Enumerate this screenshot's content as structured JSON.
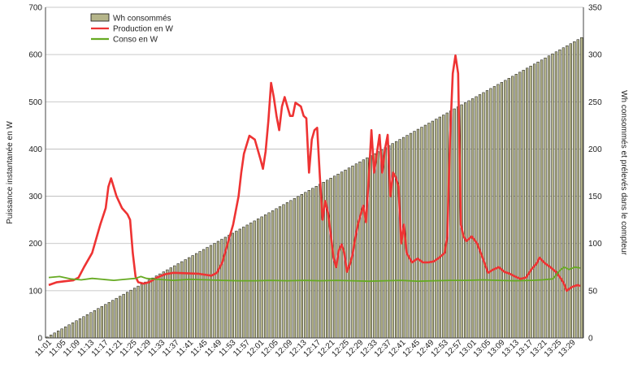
{
  "chart_data": {
    "type": "bar+line",
    "title": "",
    "left_axis": {
      "label": "Puissance instantanée en W",
      "min": 0,
      "max": 700,
      "step": 100
    },
    "right_axis": {
      "label": "Wh consommés et prélevés dans le compteur",
      "min": 0,
      "max": 350,
      "step": 50
    },
    "x_tick_labels": [
      "11:01",
      "11:05",
      "11:09",
      "11:13",
      "11:17",
      "11:21",
      "11:25",
      "11:29",
      "11:33",
      "11:37",
      "11:41",
      "11:45",
      "11:49",
      "11:53",
      "11:57",
      "12:01",
      "12:05",
      "12:09",
      "12:13",
      "12:17",
      "12:21",
      "12:25",
      "12:29",
      "12:33",
      "12:37",
      "12:41",
      "12:45",
      "12:49",
      "12:53",
      "12:57",
      "13:01",
      "13:05",
      "13:09",
      "13:13",
      "13:17",
      "13:21",
      "13:25",
      "13:29"
    ],
    "legend_position": "top-left",
    "grid": true,
    "series": [
      {
        "name": "Wh consommés",
        "kind": "bar",
        "axis": "right",
        "color": "#b5b58a",
        "edge_color": "#111111",
        "start_value": 1,
        "end_value": 318,
        "count": 148
      },
      {
        "name": "Production en W",
        "kind": "line",
        "axis": "left",
        "color": "#ee3333",
        "points": [
          [
            0,
            112
          ],
          [
            3,
            118
          ],
          [
            6,
            120
          ],
          [
            9,
            122
          ],
          [
            11,
            128
          ],
          [
            13,
            150
          ],
          [
            16,
            180
          ],
          [
            19,
            240
          ],
          [
            21,
            275
          ],
          [
            22,
            320
          ],
          [
            23,
            338
          ],
          [
            25,
            300
          ],
          [
            27,
            275
          ],
          [
            29,
            262
          ],
          [
            30,
            250
          ],
          [
            31,
            180
          ],
          [
            32,
            130
          ],
          [
            33,
            118
          ],
          [
            35,
            115
          ],
          [
            37,
            118
          ],
          [
            40,
            128
          ],
          [
            43,
            135
          ],
          [
            46,
            138
          ],
          [
            55,
            136
          ],
          [
            60,
            132
          ],
          [
            62,
            138
          ],
          [
            64,
            160
          ],
          [
            66,
            200
          ],
          [
            68,
            240
          ],
          [
            70,
            300
          ],
          [
            71,
            350
          ],
          [
            72,
            390
          ],
          [
            74,
            428
          ],
          [
            76,
            420
          ],
          [
            78,
            380
          ],
          [
            79,
            358
          ],
          [
            80,
            395
          ],
          [
            81,
            460
          ],
          [
            82,
            540
          ],
          [
            83,
            510
          ],
          [
            84,
            470
          ],
          [
            85,
            440
          ],
          [
            86,
            490
          ],
          [
            87,
            510
          ],
          [
            88,
            490
          ],
          [
            89,
            470
          ],
          [
            90,
            470
          ],
          [
            91,
            498
          ],
          [
            93,
            490
          ],
          [
            94,
            470
          ],
          [
            95,
            465
          ],
          [
            96,
            350
          ],
          [
            97,
            420
          ],
          [
            98,
            440
          ],
          [
            99,
            445
          ],
          [
            100,
            340
          ],
          [
            101,
            250
          ],
          [
            102,
            290
          ],
          [
            103,
            265
          ],
          [
            104,
            220
          ],
          [
            105,
            170
          ],
          [
            106,
            150
          ],
          [
            107,
            185
          ],
          [
            108,
            198
          ],
          [
            109,
            180
          ],
          [
            110,
            140
          ],
          [
            111,
            155
          ],
          [
            112,
            175
          ],
          [
            113,
            210
          ],
          [
            114,
            240
          ],
          [
            115,
            260
          ],
          [
            116,
            280
          ],
          [
            117,
            245
          ],
          [
            118,
            335
          ],
          [
            119,
            440
          ],
          [
            120,
            350
          ],
          [
            121,
            390
          ],
          [
            122,
            430
          ],
          [
            123,
            350
          ],
          [
            124,
            400
          ],
          [
            125,
            430
          ],
          [
            126,
            300
          ],
          [
            127,
            350
          ],
          [
            128,
            340
          ],
          [
            129,
            320
          ],
          [
            130,
            200
          ],
          [
            131,
            240
          ],
          [
            132,
            180
          ],
          [
            134,
            160
          ],
          [
            136,
            168
          ],
          [
            138,
            160
          ],
          [
            140,
            160
          ],
          [
            142,
            162
          ],
          [
            144,
            170
          ],
          [
            146,
            180
          ],
          [
            147,
            215
          ],
          [
            148,
            420
          ],
          [
            149,
            560
          ],
          [
            150,
            598
          ],
          [
            151,
            560
          ],
          [
            152,
            240
          ],
          [
            153,
            215
          ],
          [
            154,
            205
          ],
          [
            156,
            215
          ],
          [
            158,
            200
          ],
          [
            160,
            170
          ],
          [
            162,
            138
          ],
          [
            164,
            145
          ],
          [
            166,
            150
          ],
          [
            168,
            140
          ],
          [
            170,
            136
          ],
          [
            172,
            130
          ],
          [
            174,
            125
          ],
          [
            176,
            128
          ],
          [
            178,
            145
          ],
          [
            180,
            158
          ],
          [
            181,
            170
          ],
          [
            183,
            158
          ],
          [
            185,
            150
          ],
          [
            187,
            140
          ],
          [
            189,
            125
          ],
          [
            190,
            115
          ],
          [
            191,
            100
          ],
          [
            193,
            108
          ],
          [
            195,
            112
          ],
          [
            196,
            110
          ]
        ]
      },
      {
        "name": "Conso en W",
        "kind": "line",
        "axis": "left",
        "color": "#66aa22",
        "points": [
          [
            0,
            128
          ],
          [
            4,
            130
          ],
          [
            8,
            125
          ],
          [
            12,
            123
          ],
          [
            16,
            126
          ],
          [
            20,
            124
          ],
          [
            24,
            122
          ],
          [
            28,
            124
          ],
          [
            32,
            126
          ],
          [
            34,
            130
          ],
          [
            36,
            126
          ],
          [
            40,
            124
          ],
          [
            46,
            122
          ],
          [
            52,
            124
          ],
          [
            58,
            123
          ],
          [
            64,
            122
          ],
          [
            70,
            121
          ],
          [
            76,
            121
          ],
          [
            82,
            122
          ],
          [
            88,
            121
          ],
          [
            94,
            122
          ],
          [
            100,
            121
          ],
          [
            106,
            122
          ],
          [
            112,
            121
          ],
          [
            118,
            120
          ],
          [
            124,
            121
          ],
          [
            130,
            122
          ],
          [
            136,
            120
          ],
          [
            142,
            121
          ],
          [
            148,
            122
          ],
          [
            154,
            122
          ],
          [
            160,
            123
          ],
          [
            166,
            122
          ],
          [
            172,
            121
          ],
          [
            178,
            122
          ],
          [
            182,
            123
          ],
          [
            186,
            125
          ],
          [
            188,
            140
          ],
          [
            190,
            150
          ],
          [
            192,
            145
          ],
          [
            194,
            150
          ],
          [
            196,
            148
          ]
        ]
      }
    ]
  }
}
